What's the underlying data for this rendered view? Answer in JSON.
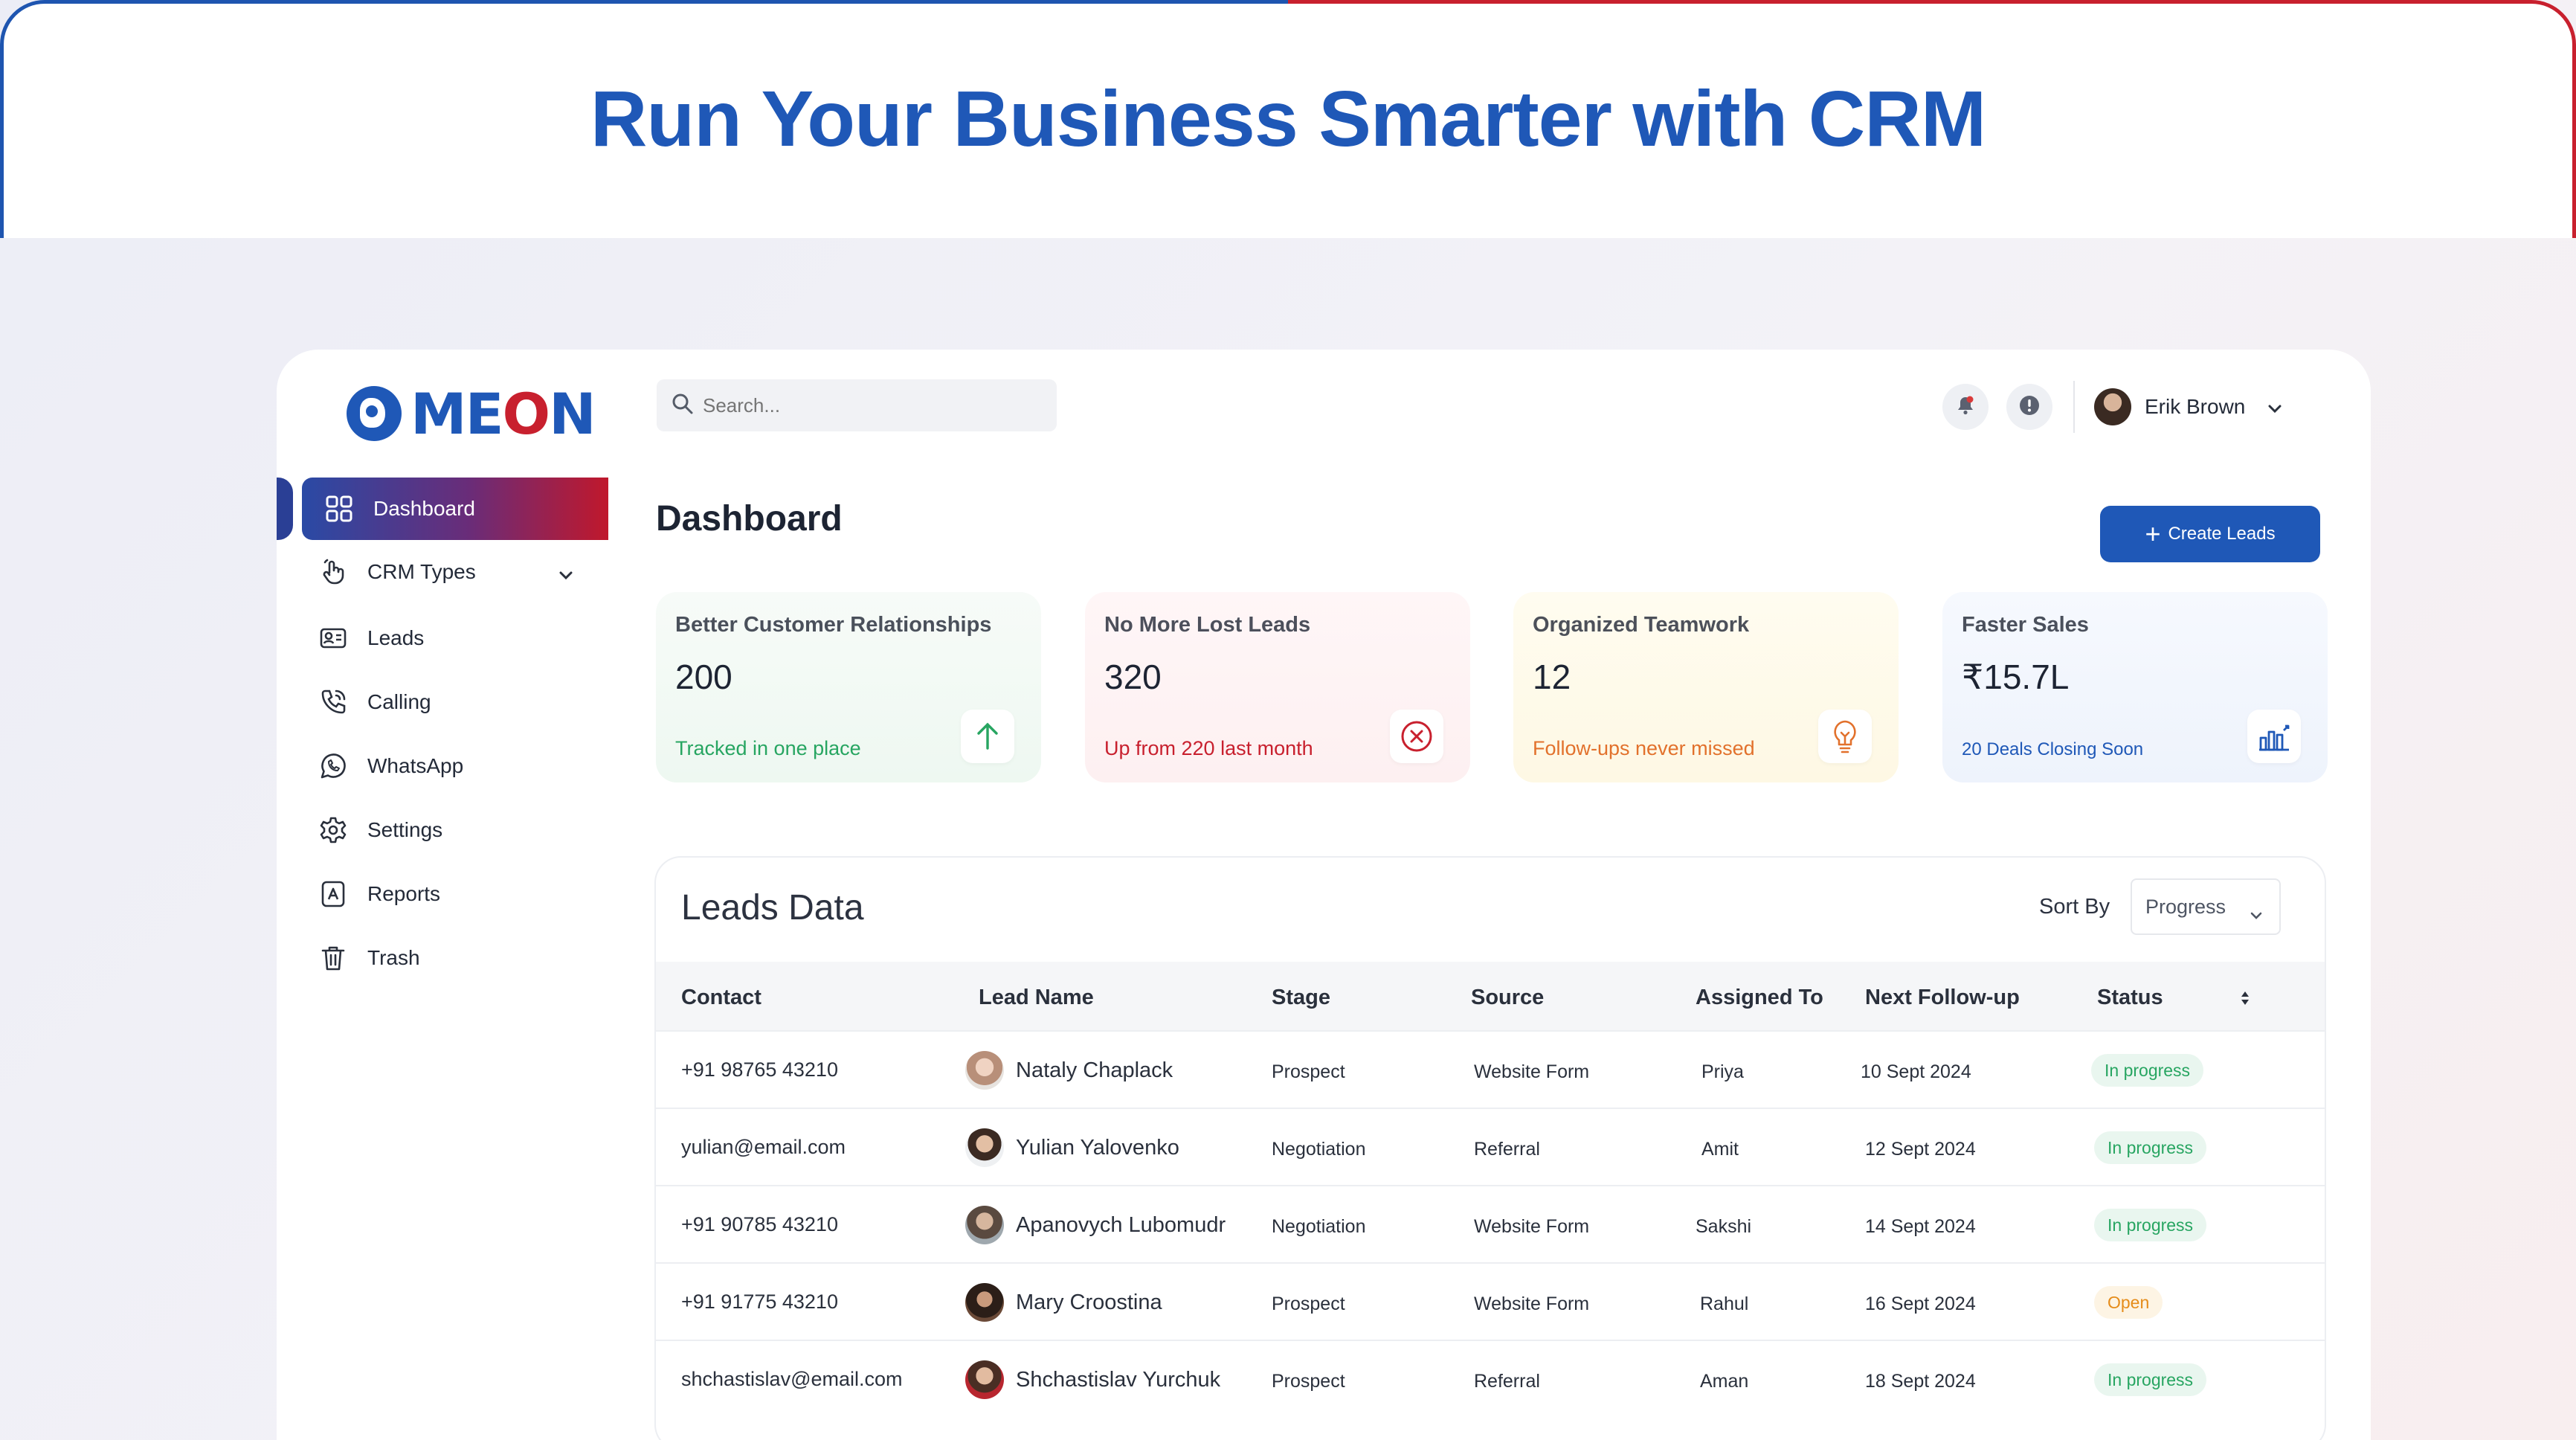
{
  "hero": {
    "title": "Run Your Business Smarter with CRM"
  },
  "brand": {
    "logo_text_a": "ME",
    "logo_text_b": "O",
    "logo_text_c": "N",
    "primary": "#1f58b7",
    "accent": "#c8202e"
  },
  "header": {
    "search_placeholder": "Search...",
    "user_name": "Erik Brown",
    "bell_icon": "bell-icon",
    "info_icon": "info-icon"
  },
  "sidebar": {
    "items": [
      {
        "label": "Dashboard",
        "icon": "grid-icon",
        "active": true
      },
      {
        "label": "CRM Types",
        "icon": "hand-pointer-icon"
      },
      {
        "label": "Leads",
        "icon": "id-card-icon"
      },
      {
        "label": "Calling",
        "icon": "phone-icon"
      },
      {
        "label": "WhatsApp",
        "icon": "whatsapp-icon"
      },
      {
        "label": "Settings",
        "icon": "gear-icon"
      },
      {
        "label": "Reports",
        "icon": "report-icon"
      },
      {
        "label": "Trash",
        "icon": "trash-icon"
      }
    ]
  },
  "main": {
    "title": "Dashboard",
    "create_label": "Create Leads",
    "cards": [
      {
        "title": "Better Customer Relationships",
        "value": "200",
        "sub": "Tracked in one place",
        "sub_color": "#27a561",
        "icon": "arrow-up-icon"
      },
      {
        "title": "No More Lost Leads",
        "value": "320",
        "sub": "Up from 220 last month",
        "sub_color": "#c8202e",
        "icon": "x-circle-icon"
      },
      {
        "title": "Organized Teamwork",
        "value": "12",
        "sub": "Follow-ups never missed",
        "sub_color": "#e2712c",
        "icon": "bulb-icon"
      },
      {
        "title": "Faster Sales",
        "value": "₹15.7L",
        "sub": "20 Deals Closing Soon",
        "sub_color": "#1f58b7",
        "icon": "bar-chart-icon"
      }
    ]
  },
  "leads": {
    "title": "Leads Data",
    "sort_label": "Sort By",
    "sort_value": "Progress",
    "columns": [
      "Contact",
      "Lead Name",
      "Stage",
      "Source",
      "Assigned To",
      "Next Follow-up",
      "Status"
    ],
    "rows": [
      {
        "contact": "+91 98765 43210",
        "name": "Nataly Chaplack",
        "stage": "Prospect",
        "source": "Website Form",
        "assigned": "Priya",
        "follow": "10 Sept 2024",
        "status": "In progress"
      },
      {
        "contact": "yulian@email.com",
        "name": "Yulian Yalovenko",
        "stage": "Negotiation",
        "source": "Referral",
        "assigned": "Amit",
        "follow": "12 Sept 2024",
        "status": "In progress"
      },
      {
        "contact": "+91 90785 43210",
        "name": "Apanovych Lubomudr",
        "stage": "Negotiation",
        "source": "Website Form",
        "assigned": "Sakshi",
        "follow": "14 Sept 2024",
        "status": "In progress"
      },
      {
        "contact": "+91 91775 43210",
        "name": "Mary Croostina",
        "stage": "Prospect",
        "source": "Website Form",
        "assigned": "Rahul",
        "follow": "16 Sept 2024",
        "status": "Open"
      },
      {
        "contact": "shchastislav@email.com",
        "name": "Shchastislav Yurchuk",
        "stage": "Prospect",
        "source": "Referral",
        "assigned": "Aman",
        "follow": "18 Sept 2024",
        "status": "In progress"
      }
    ]
  }
}
